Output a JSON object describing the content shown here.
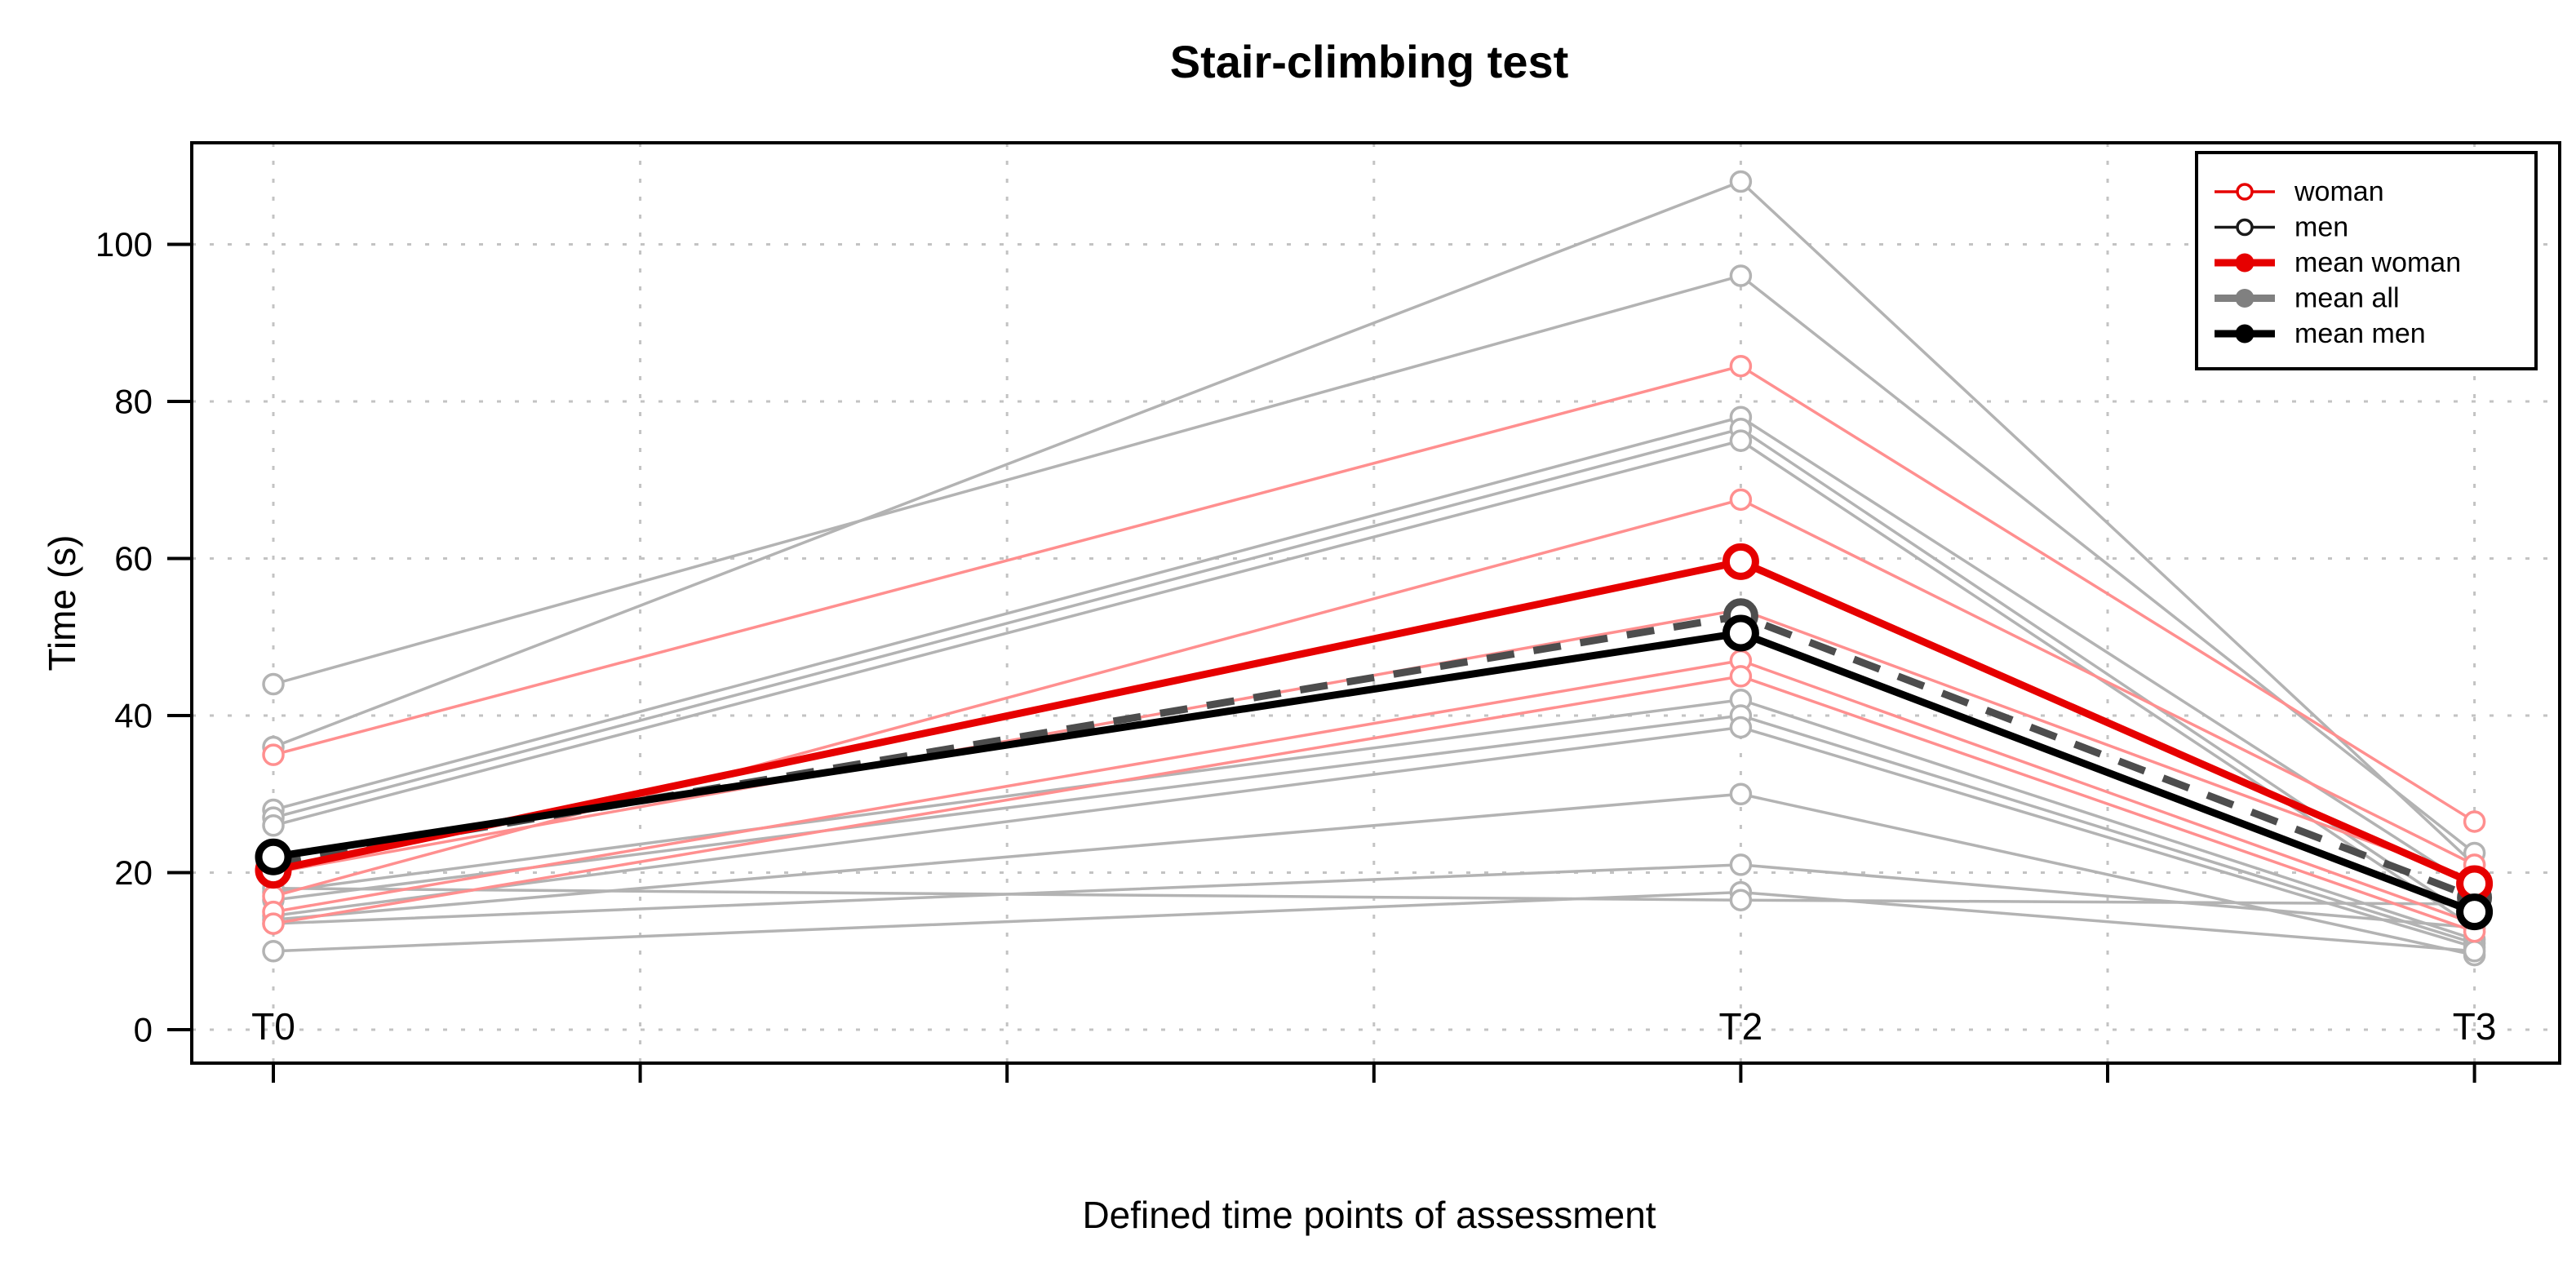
{
  "figure": {
    "background": "#ffffff",
    "title": "Stair-climbing test"
  },
  "chart_data": {
    "type": "line",
    "title": "Stair-climbing test",
    "xlabel": "Defined time points of assessment",
    "ylabel": "Time (s)",
    "x_categories": [
      "T0",
      "T2",
      "T3"
    ],
    "x_unit_positions": [
      0,
      4,
      6
    ],
    "x_gridline_units": [
      0,
      1,
      2,
      3,
      4,
      5,
      6
    ],
    "yticks": [
      0,
      20,
      40,
      60,
      80,
      100
    ],
    "ylim": [
      -4,
      113
    ],
    "grid": true,
    "grid_color": "#c3c3c3",
    "legend_position": "top-right",
    "styles": {
      "men": {
        "color": "#b3b3b3",
        "line_width": 3.5,
        "marker": "open",
        "marker_r": 12,
        "marker_stroke": 3.5,
        "dash": null
      },
      "woman": {
        "color": "#ff8f8f",
        "line_width": 3.5,
        "marker": "open",
        "marker_r": 12,
        "marker_stroke": 3.5,
        "dash": null
      },
      "mean_all": {
        "color": "#4d4d4d",
        "line_width": 9,
        "marker": "open",
        "marker_r": 17,
        "marker_stroke": 9,
        "dash": "34 24"
      },
      "mean_woman": {
        "color": "#e60000",
        "line_width": 9,
        "marker": "open",
        "marker_r": 18,
        "marker_stroke": 9,
        "dash": null
      },
      "mean_men": {
        "color": "#000000",
        "line_width": 9,
        "marker": "open",
        "marker_r": 18,
        "marker_stroke": 9,
        "dash": null
      }
    },
    "series": [
      {
        "name": "men-1",
        "group": "men",
        "values": [
          36,
          108,
          21
        ]
      },
      {
        "name": "men-2",
        "group": "men",
        "values": [
          44,
          96,
          22.5
        ]
      },
      {
        "name": "men-3",
        "group": "men",
        "values": [
          28,
          78,
          18
        ]
      },
      {
        "name": "men-4",
        "group": "men",
        "values": [
          27,
          76.5,
          14
        ]
      },
      {
        "name": "men-5",
        "group": "men",
        "values": [
          26,
          75,
          13
        ]
      },
      {
        "name": "men-6",
        "group": "men",
        "values": [
          17.5,
          42,
          11.5
        ]
      },
      {
        "name": "men-7",
        "group": "men",
        "values": [
          16.5,
          40,
          11
        ]
      },
      {
        "name": "men-8",
        "group": "men",
        "values": [
          14.5,
          38.5,
          10.5
        ]
      },
      {
        "name": "men-9",
        "group": "men",
        "values": [
          14,
          30,
          9.5
        ]
      },
      {
        "name": "men-10",
        "group": "men",
        "values": [
          13.5,
          21,
          13
        ]
      },
      {
        "name": "men-11",
        "group": "men",
        "values": [
          10,
          17.5,
          10
        ]
      },
      {
        "name": "men-12",
        "group": "men",
        "values": [
          18,
          16.5,
          16
        ]
      },
      {
        "name": "woman-1",
        "group": "woman",
        "values": [
          35,
          84.5,
          26.5
        ]
      },
      {
        "name": "woman-2",
        "group": "woman",
        "values": [
          17,
          67.5,
          21
        ]
      },
      {
        "name": "woman-3",
        "group": "woman",
        "values": [
          20,
          53.5,
          19
        ]
      },
      {
        "name": "woman-4",
        "group": "woman",
        "values": [
          15,
          47,
          13.5
        ]
      },
      {
        "name": "woman-5",
        "group": "woman",
        "values": [
          13.5,
          45,
          12.5
        ]
      },
      {
        "name": "mean-all",
        "group": "mean_all",
        "values": [
          21.3,
          52.7,
          16.8
        ]
      },
      {
        "name": "mean-woman",
        "group": "mean_woman",
        "values": [
          20.3,
          59.6,
          18.6
        ]
      },
      {
        "name": "mean-men",
        "group": "mean_men",
        "values": [
          22,
          50.5,
          15
        ]
      }
    ],
    "legend": [
      {
        "label": "woman",
        "color": "#e60000",
        "line_width": 3.5,
        "marker": "open"
      },
      {
        "label": "men",
        "color": "#1a1a1a",
        "line_width": 3.5,
        "marker": "open"
      },
      {
        "label": "mean woman",
        "color": "#e60000",
        "line_width": 9,
        "marker": "filled"
      },
      {
        "label": "mean all",
        "color": "#808080",
        "line_width": 9,
        "marker": "filled"
      },
      {
        "label": "mean men",
        "color": "#000000",
        "line_width": 9,
        "marker": "filled"
      }
    ]
  }
}
